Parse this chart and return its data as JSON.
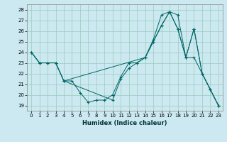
{
  "title": "",
  "xlabel": "Humidex (Indice chaleur)",
  "bg_color": "#cce8f0",
  "grid_color": "#99ccbb",
  "line_color": "#006666",
  "xlim": [
    -0.5,
    23.5
  ],
  "ylim": [
    18.5,
    28.5
  ],
  "yticks": [
    19,
    20,
    21,
    22,
    23,
    24,
    25,
    26,
    27,
    28
  ],
  "xticks": [
    0,
    1,
    2,
    3,
    4,
    5,
    6,
    7,
    8,
    9,
    10,
    11,
    12,
    13,
    14,
    15,
    16,
    17,
    18,
    19,
    20,
    21,
    22,
    23
  ],
  "line1_x": [
    0,
    1,
    2,
    3,
    4,
    5,
    6,
    7,
    8,
    9,
    10,
    11,
    12,
    13,
    14,
    15,
    16,
    17,
    18,
    19,
    20,
    21,
    22,
    23
  ],
  "line1_y": [
    24.0,
    23.0,
    23.0,
    23.0,
    21.3,
    21.3,
    20.2,
    19.3,
    19.5,
    19.5,
    20.0,
    21.7,
    23.0,
    23.0,
    23.5,
    25.2,
    27.5,
    27.8,
    27.5,
    23.5,
    23.5,
    22.0,
    20.5,
    19.0
  ],
  "line2_x": [
    0,
    1,
    2,
    3,
    4,
    14,
    15,
    16,
    17,
    18,
    19,
    20,
    21,
    22,
    23
  ],
  "line2_y": [
    24.0,
    23.0,
    23.0,
    23.0,
    21.3,
    23.5,
    25.0,
    26.5,
    27.8,
    26.2,
    23.5,
    26.2,
    22.0,
    20.5,
    19.0
  ],
  "line3_x": [
    0,
    1,
    2,
    3,
    4,
    10,
    11,
    12,
    13,
    14,
    15,
    16,
    17,
    18,
    19,
    20,
    21,
    22,
    23
  ],
  "line3_y": [
    24.0,
    23.0,
    23.0,
    23.0,
    21.3,
    19.5,
    21.5,
    22.5,
    23.0,
    23.5,
    25.0,
    26.5,
    27.8,
    26.2,
    23.5,
    26.2,
    22.0,
    20.5,
    19.0
  ]
}
